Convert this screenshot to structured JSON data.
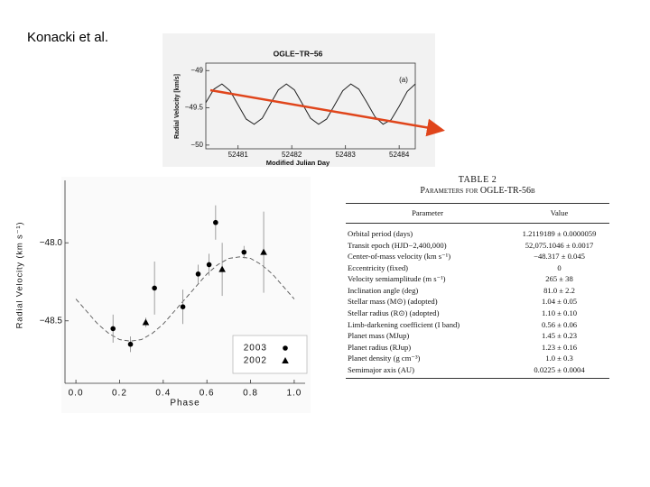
{
  "header": "Konacki et al.",
  "chart_data": [
    {
      "type": "line",
      "title": "OGLE−TR−56",
      "panel_label": "(a)",
      "x_label": "Modified Julian Day",
      "y_label": "Radial Velocity [km/s]",
      "x": [
        52480.4,
        52480.55,
        52480.7,
        52480.85,
        52481,
        52481.15,
        52481.3,
        52481.45,
        52481.6,
        52481.75,
        52481.9,
        52482.05,
        52482.2,
        52482.35,
        52482.5,
        52482.65,
        52482.8,
        52482.95,
        52483.1,
        52483.25,
        52483.4,
        52483.55,
        52483.7,
        52483.85,
        52484,
        52484.15,
        52484.3
      ],
      "values": [
        -49.43,
        -49.25,
        -49.18,
        -49.27,
        -49.46,
        -49.65,
        -49.72,
        -49.64,
        -49.45,
        -49.26,
        -49.18,
        -49.26,
        -49.45,
        -49.64,
        -49.72,
        -49.65,
        -49.46,
        -49.27,
        -49.18,
        -49.25,
        -49.43,
        -49.62,
        -49.72,
        -49.66,
        -49.48,
        -49.28,
        -49.18
      ],
      "color": "#222",
      "xlim": [
        52480.4,
        52484.3
      ],
      "xticks": [
        52481,
        52482,
        52483,
        52484
      ],
      "ylim": [
        -50.05,
        -48.9
      ],
      "yticks": [
        {
          "value": -49,
          "label": "−49"
        },
        {
          "value": -49.5,
          "label": "−49.5"
        },
        {
          "value": -50,
          "label": "−50"
        }
      ]
    },
    {
      "type": "scatter",
      "x_label": "Phase",
      "y_label": "Radial Velocity (km s⁻¹)",
      "series": [
        {
          "name": "2003",
          "marker": "circle",
          "color": "#000",
          "x": [
            0.17,
            0.25,
            0.36,
            0.49,
            0.56,
            0.61,
            0.64,
            0.77
          ],
          "values": [
            -48.55,
            -48.65,
            -48.29,
            -48.41,
            -48.2,
            -48.14,
            -47.87,
            -48.06
          ],
          "errors": [
            0.09,
            0.05,
            0.17,
            0.11,
            0.06,
            0.07,
            0.11,
            0.04
          ]
        },
        {
          "name": "2002",
          "marker": "triangle",
          "color": "#000",
          "x": [
            0.32,
            0.67,
            0.86
          ],
          "values": [
            -48.51,
            -48.17,
            -48.06
          ],
          "errors": [
            0.03,
            0.17,
            0.26
          ]
        }
      ],
      "model": {
        "x": [
          0,
          0.05,
          0.1,
          0.15,
          0.2,
          0.25,
          0.3,
          0.35,
          0.4,
          0.45,
          0.5,
          0.55,
          0.6,
          0.65,
          0.7,
          0.75,
          0.8,
          0.85,
          0.9,
          0.95,
          1
        ],
        "values": [
          -48.36,
          -48.44,
          -48.52,
          -48.58,
          -48.62,
          -48.63,
          -48.62,
          -48.58,
          -48.52,
          -48.44,
          -48.36,
          -48.28,
          -48.2,
          -48.14,
          -48.1,
          -48.09,
          -48.1,
          -48.14,
          -48.2,
          -48.28,
          -48.36
        ],
        "color": "#555"
      },
      "xlim": [
        -0.05,
        1.05
      ],
      "xticks": [
        {
          "value": 0,
          "label": "0.0"
        },
        {
          "value": 0.2,
          "label": "0.2"
        },
        {
          "value": 0.4,
          "label": "0.4"
        },
        {
          "value": 0.6,
          "label": "0.6"
        },
        {
          "value": 0.8,
          "label": "0.8"
        },
        {
          "value": 1,
          "label": "1.0"
        }
      ],
      "ylim": [
        -48.9,
        -47.6
      ],
      "yticks": [
        {
          "value": -48,
          "label": "−48.0"
        },
        {
          "value": -48.5,
          "label": "−48.5"
        }
      ],
      "legend": "lower right"
    }
  ],
  "table": {
    "title": "TABLE 2",
    "subtitle": "Parameters for OGLE-TR-56b",
    "columns": [
      "Parameter",
      "Value"
    ],
    "rows": [
      [
        "Orbital period (days)",
        "1.2119189 ± 0.0000059"
      ],
      [
        "Transit epoch (HJD−2,400,000)",
        "52,075.1046 ± 0.0017"
      ],
      [
        "Center-of-mass velocity (km s⁻¹)",
        "−48.317 ± 0.045"
      ],
      [
        "Eccentricity (fixed)",
        "0"
      ],
      [
        "Velocity semiamplitude (m s⁻¹)",
        "265 ± 38"
      ],
      [
        "Inclination angle (deg)",
        "81.0 ± 2.2"
      ],
      [
        "Stellar mass (M⊙) (adopted)",
        "1.04 ± 0.05"
      ],
      [
        "Stellar radius (R⊙) (adopted)",
        "1.10 ± 0.10"
      ],
      [
        "Limb-darkening coefficient (I band)",
        "0.56 ± 0.06"
      ],
      [
        "Planet mass (MJup)",
        "1.45 ± 0.23"
      ],
      [
        "Planet radius (RJup)",
        "1.23 ± 0.16"
      ],
      [
        "Planet density (g cm⁻³)",
        "1.0 ± 0.3"
      ],
      [
        "Semimajor axis (AU)",
        "0.0225 ± 0.0004"
      ]
    ]
  }
}
